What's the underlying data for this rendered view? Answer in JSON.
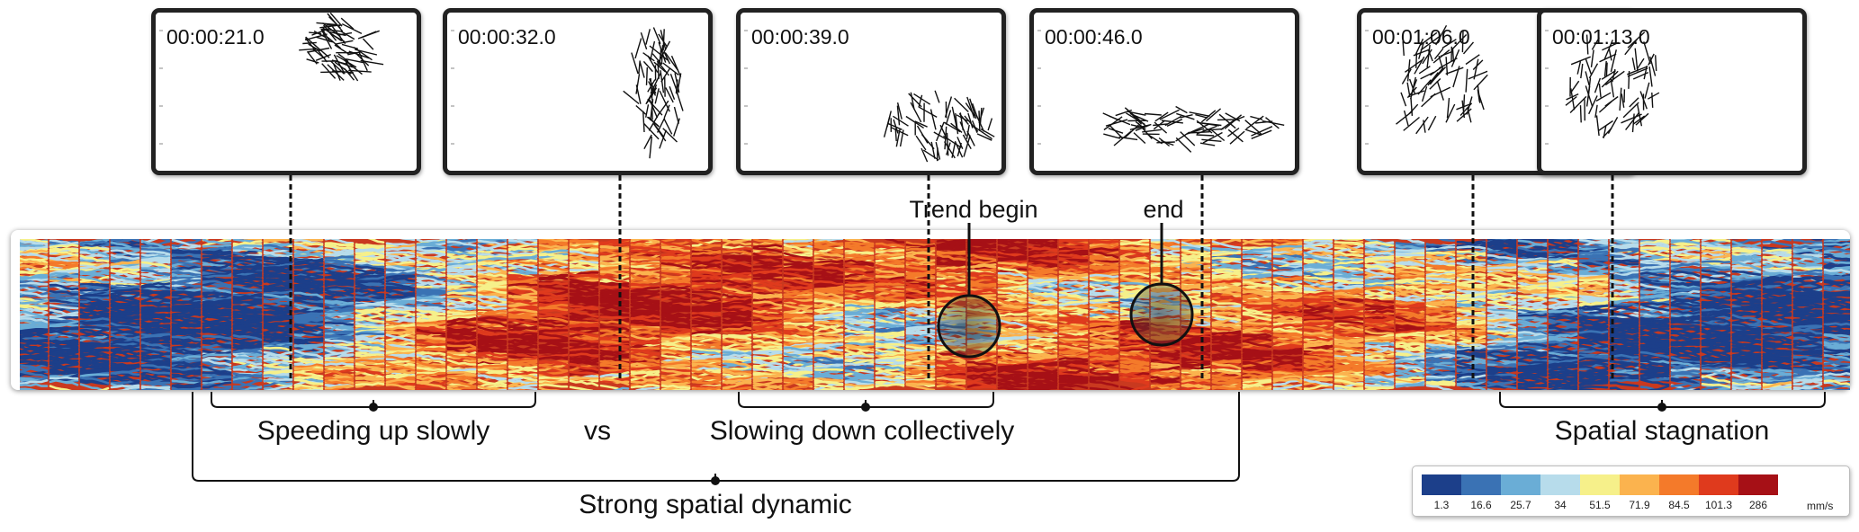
{
  "panels": [
    {
      "time": "00:00:21.0",
      "cluster": "upper-right"
    },
    {
      "time": "00:00:32.0",
      "cluster": "right-vertical"
    },
    {
      "time": "00:00:39.0",
      "cluster": "lower-right"
    },
    {
      "time": "00:00:46.0",
      "cluster": "bottom-flat"
    },
    {
      "time": "00:01:06.0",
      "cluster": "upper-left-round"
    },
    {
      "time": "00:01:13.0",
      "cluster": "upper-left-round"
    }
  ],
  "annotations": {
    "trend_begin": "Trend begin",
    "trend_end": "end",
    "speeding_up": "Speeding up slowly",
    "versus": "vs",
    "slowing_down": "Slowing down collectively",
    "strong_dynamic": "Strong spatial dynamic",
    "stagnation": "Spatial stagnation"
  },
  "legend": {
    "ticks": [
      "1.3",
      "16.6",
      "25.7",
      "34",
      "51.5",
      "71.9",
      "84.5",
      "101.3",
      "286"
    ],
    "colors": [
      "#1c3f8a",
      "#3a72b4",
      "#6aadd6",
      "#b7dceb",
      "#f6f08a",
      "#fbb34e",
      "#f47a2a",
      "#df3a1d",
      "#a61016"
    ],
    "unit": "mm/s"
  },
  "strip_profile": {
    "speed_level_by_position": [
      0.25,
      0.12,
      0.08,
      0.28,
      0.55,
      0.8,
      0.78,
      0.7,
      0.55,
      0.75,
      0.72,
      0.7,
      0.62,
      0.5,
      0.25,
      0.12,
      0.1,
      0.12
    ],
    "zones": [
      "variable",
      "blue",
      "red-wave",
      "red",
      "mixed",
      "red-diagonal",
      "blue"
    ]
  }
}
